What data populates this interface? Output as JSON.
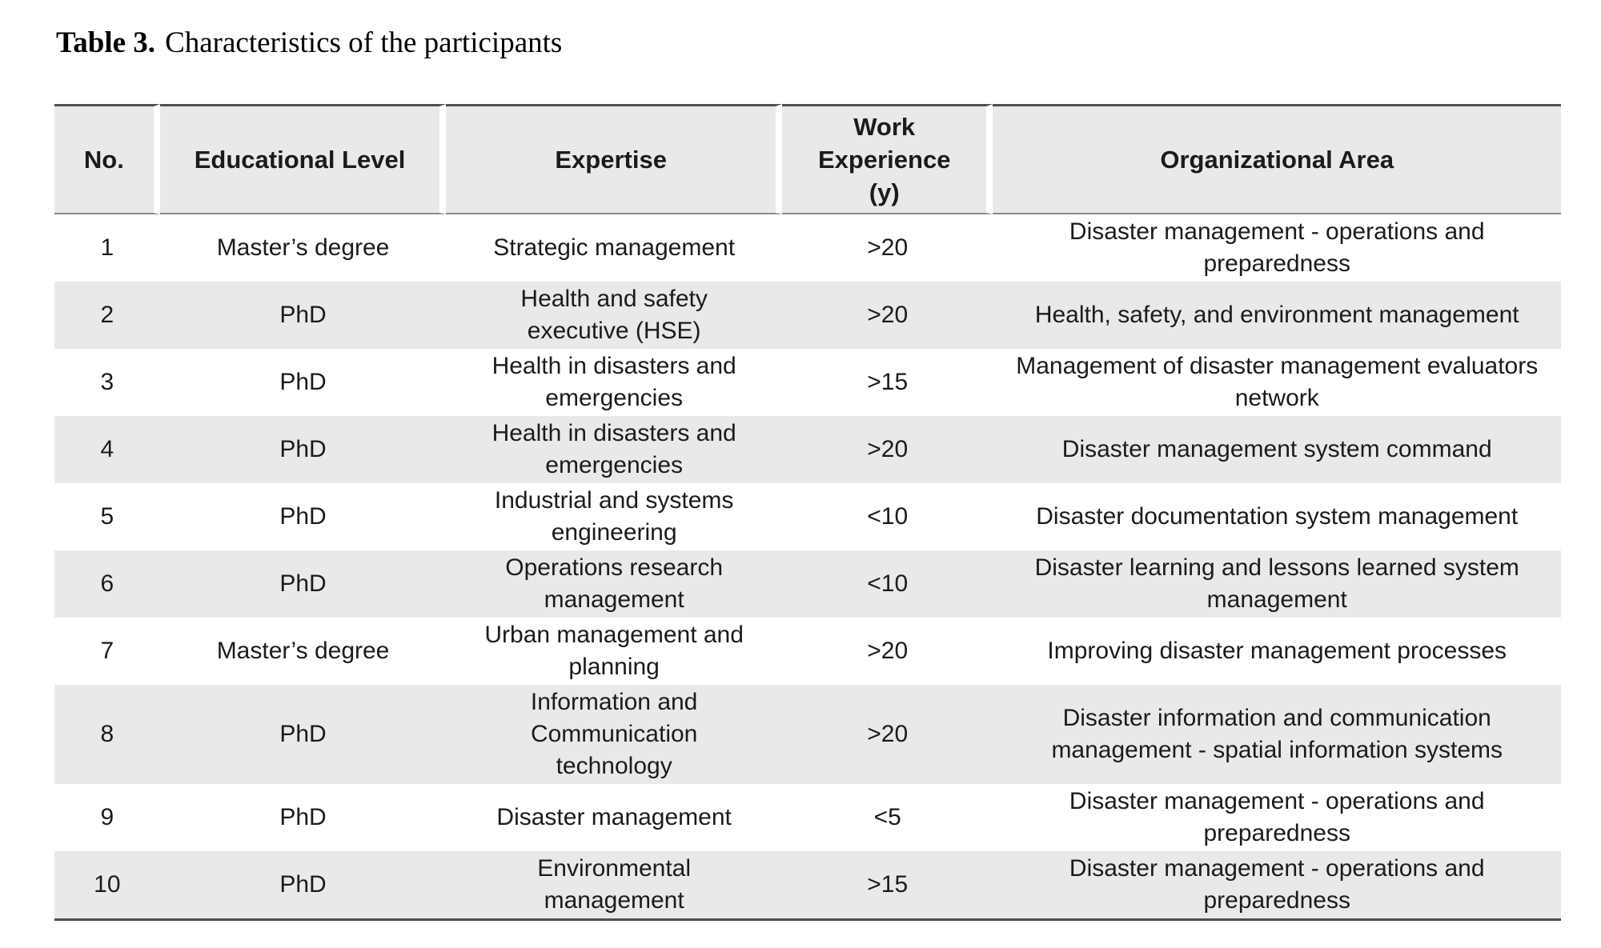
{
  "title": {
    "label": "Table 3.",
    "text": "Characteristics of the participants"
  },
  "theme": {
    "band_gray": "#e9e9e9",
    "border_dark": "#4f4f4f",
    "border_mid": "#8a8a8a",
    "text_color": "#1b1b1b"
  },
  "table": {
    "columns": [
      {
        "key": "no",
        "label": "No."
      },
      {
        "key": "educational-level",
        "label": "Educational Level"
      },
      {
        "key": "expertise",
        "label": "Expertise"
      },
      {
        "key": "work-experience",
        "label": "Work Experience\n(y)"
      },
      {
        "key": "organizational-area",
        "label": "Organizational Area"
      }
    ],
    "rows": [
      [
        "1",
        "Master’s degree",
        "Strategic management",
        ">20",
        "Disaster management - operations and\npreparedness"
      ],
      [
        "2",
        "PhD",
        "Health and safety\nexecutive (HSE)",
        ">20",
        "Health, safety, and environment management"
      ],
      [
        "3",
        "PhD",
        "Health in disasters and\nemergencies",
        ">15",
        "Management of disaster management evaluators\nnetwork"
      ],
      [
        "4",
        "PhD",
        "Health in disasters and\nemergencies",
        ">20",
        "Disaster management system command"
      ],
      [
        "5",
        "PhD",
        "Industrial and systems\nengineering",
        "<10",
        "Disaster documentation system management"
      ],
      [
        "6",
        "PhD",
        "Operations research\nmanagement",
        "<10",
        "Disaster learning and lessons learned system\nmanagement"
      ],
      [
        "7",
        "Master’s degree",
        "Urban management and\nplanning",
        ">20",
        "Improving disaster management processes"
      ],
      [
        "8",
        "PhD",
        "Information and\nCommunication\ntechnology",
        ">20",
        "Disaster information and communication\nmanagement - spatial information systems"
      ],
      [
        "9",
        "PhD",
        "Disaster management",
        "<5",
        "Disaster management - operations and\npreparedness"
      ],
      [
        "10",
        "PhD",
        "Environmental\nmanagement",
        ">15",
        "Disaster management - operations and\npreparedness"
      ]
    ]
  }
}
